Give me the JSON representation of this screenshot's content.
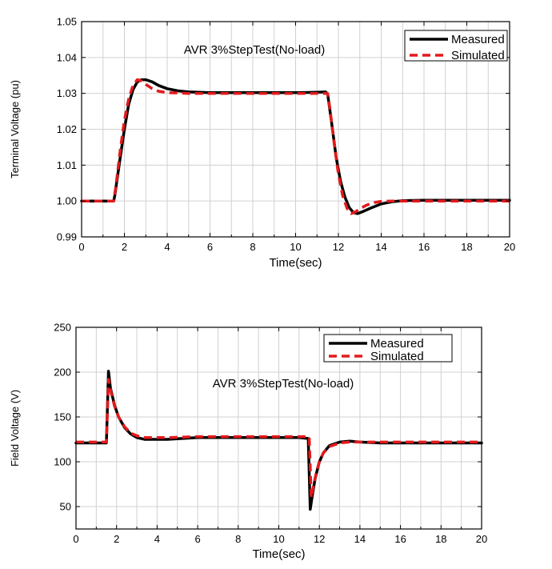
{
  "chart_data": [
    {
      "type": "line",
      "annotation": "AVR 3%StepTest(No-load)",
      "xlabel": "Time(sec)",
      "ylabel": "Terminal Voltage (pu)",
      "xlim": [
        0,
        20
      ],
      "ylim": [
        0.99,
        1.05
      ],
      "x_ticks": [
        "0",
        "2",
        "4",
        "6",
        "8",
        "10",
        "12",
        "14",
        "16",
        "18",
        "20"
      ],
      "y_ticks": [
        "0.99",
        "1.00",
        "1.01",
        "1.02",
        "1.03",
        "1.04",
        "1.05"
      ],
      "grid": true,
      "legend_position": "top-right",
      "series": [
        {
          "name": "Measured",
          "color": "#000000",
          "style": "solid",
          "x": [
            0,
            1.5,
            1.55,
            1.8,
            2.0,
            2.2,
            2.4,
            2.6,
            2.8,
            3.0,
            3.3,
            3.6,
            4.0,
            4.5,
            5.0,
            6.0,
            8.0,
            10.0,
            11.0,
            11.4,
            11.5,
            11.7,
            11.9,
            12.1,
            12.3,
            12.5,
            12.7,
            12.9,
            13.2,
            13.5,
            14.0,
            14.5,
            15.0,
            16.0,
            18.0,
            20.0
          ],
          "y": [
            1.0,
            1.0,
            1.0015,
            1.012,
            1.02,
            1.027,
            1.031,
            1.0332,
            1.0338,
            1.0338,
            1.0332,
            1.0322,
            1.0313,
            1.0307,
            1.0304,
            1.0302,
            1.0302,
            1.0302,
            1.0303,
            1.0304,
            1.0298,
            1.021,
            1.012,
            1.0055,
            1.0012,
            0.9982,
            0.9968,
            0.9965,
            0.9972,
            0.998,
            0.9992,
            0.9998,
            1.0001,
            1.0002,
            1.0002,
            1.0002
          ]
        },
        {
          "name": "Simulated",
          "color": "#e31a1c",
          "style": "dashed",
          "x": [
            0,
            1.5,
            1.6,
            1.8,
            2.0,
            2.2,
            2.4,
            2.6,
            2.8,
            3.0,
            3.3,
            3.6,
            4.0,
            4.5,
            5.0,
            6.0,
            8.0,
            10.0,
            11.0,
            11.5,
            11.6,
            11.8,
            12.0,
            12.2,
            12.4,
            12.6,
            12.8,
            13.0,
            13.3,
            13.6,
            14.0,
            14.5,
            15.0,
            16.0,
            18.0,
            20.0
          ],
          "y": [
            1.0,
            1.0,
            1.004,
            1.014,
            1.0225,
            1.0285,
            1.0322,
            1.0338,
            1.0335,
            1.0325,
            1.0313,
            1.0306,
            1.0302,
            1.0301,
            1.03,
            1.03,
            1.03,
            1.03,
            1.03,
            1.03,
            1.026,
            1.016,
            1.0075,
            1.0015,
            0.998,
            0.9965,
            0.997,
            0.9978,
            0.9988,
            0.9995,
            0.9999,
            1.0,
            1.0,
            1.0,
            1.0,
            1.0
          ]
        }
      ]
    },
    {
      "type": "line",
      "annotation": "AVR 3%StepTest(No-load)",
      "xlabel": "Time(sec)",
      "ylabel": "Field Voltage (V)",
      "xlim": [
        0,
        20
      ],
      "ylim": [
        25,
        250
      ],
      "x_ticks": [
        "0",
        "2",
        "4",
        "6",
        "8",
        "10",
        "12",
        "14",
        "16",
        "18",
        "20"
      ],
      "y_ticks": [
        "50",
        "100",
        "150",
        "200",
        "250"
      ],
      "grid": true,
      "legend_position": "top-right",
      "series": [
        {
          "name": "Measured",
          "color": "#000000",
          "style": "solid",
          "x": [
            0,
            1.5,
            1.6,
            1.7,
            1.9,
            2.1,
            2.4,
            2.7,
            3.0,
            3.4,
            3.8,
            4.5,
            6.0,
            8.0,
            10.0,
            11.0,
            11.45,
            11.55,
            11.65,
            11.8,
            12.0,
            12.2,
            12.5,
            13.0,
            13.5,
            14.0,
            15.0,
            16.0,
            18.0,
            20.0
          ],
          "y": [
            121,
            121,
            201,
            182,
            163,
            150,
            138,
            131,
            127,
            125,
            125,
            125,
            127,
            127,
            127,
            127,
            126,
            47,
            62,
            82,
            100,
            110,
            118,
            122,
            123,
            122,
            121,
            121,
            121,
            121
          ]
        },
        {
          "name": "Simulated",
          "color": "#e31a1c",
          "style": "dashed",
          "x": [
            0,
            1.5,
            1.6,
            1.7,
            1.9,
            2.1,
            2.4,
            2.7,
            3.0,
            3.4,
            3.8,
            4.5,
            6.0,
            8.0,
            10.0,
            11.0,
            11.5,
            11.6,
            11.7,
            11.85,
            12.0,
            12.2,
            12.5,
            13.0,
            13.5,
            14.0,
            15.0,
            16.0,
            18.0,
            20.0
          ],
          "y": [
            122,
            122,
            192,
            180,
            162,
            150,
            139,
            132,
            129,
            127,
            127,
            127,
            128,
            128,
            128,
            128,
            128,
            60,
            72,
            88,
            100,
            110,
            117,
            121,
            122,
            122,
            122,
            122,
            122,
            122
          ]
        }
      ]
    }
  ]
}
